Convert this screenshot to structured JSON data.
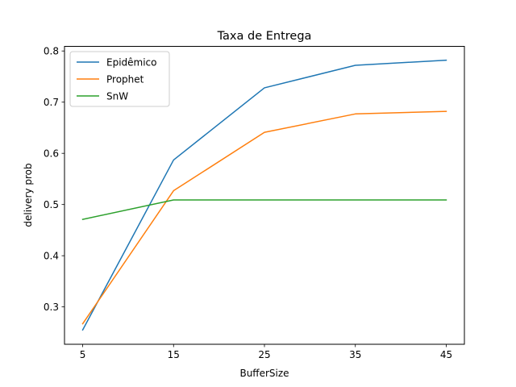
{
  "chart_data": {
    "type": "line",
    "title": "Taxa de Entrega",
    "xlabel": "BufferSize",
    "ylabel": "delivery prob",
    "x": [
      5,
      15,
      25,
      35,
      45
    ],
    "x_tick_labels": [
      "5",
      "15",
      "25",
      "35",
      "45"
    ],
    "xlim": [
      3.0,
      47.0
    ],
    "ylim": [
      0.227,
      0.809
    ],
    "y_ticks": [
      0.3,
      0.4,
      0.5,
      0.6,
      0.7,
      0.8
    ],
    "y_tick_labels": [
      "0.3",
      "0.4",
      "0.5",
      "0.6",
      "0.7",
      "0.8"
    ],
    "grid": false,
    "legend_position": "top-left",
    "series": [
      {
        "name": "Epidêmico",
        "color": "#1f77b4",
        "values": [
          0.255,
          0.587,
          0.728,
          0.772,
          0.782
        ]
      },
      {
        "name": "Prophet",
        "color": "#ff7f0e",
        "values": [
          0.267,
          0.527,
          0.641,
          0.677,
          0.682
        ]
      },
      {
        "name": "SnW",
        "color": "#2ca02c",
        "values": [
          0.471,
          0.509,
          0.509,
          0.509,
          0.509
        ]
      }
    ]
  }
}
